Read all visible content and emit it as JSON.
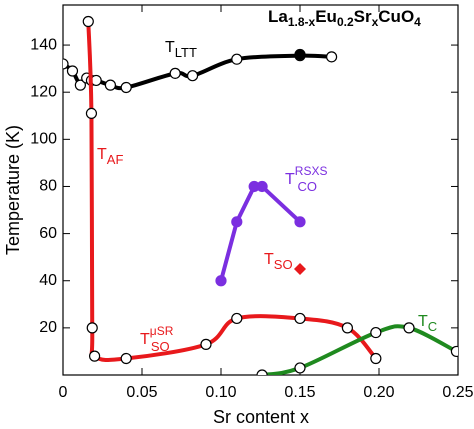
{
  "chart_data": {
    "type": "line",
    "title": [
      {
        "text": "La"
      },
      {
        "text": "1.8-x",
        "sub": true
      },
      {
        "text": "Eu"
      },
      {
        "text": "0.2",
        "sub": true
      },
      {
        "text": "Sr"
      },
      {
        "text": "x",
        "sub": true
      },
      {
        "text": "CuO"
      },
      {
        "text": "4",
        "sub": true
      }
    ],
    "x_label": "Sr content x",
    "y_label": "Temperature (K)",
    "xlim": [
      0,
      0.25
    ],
    "ylim": [
      0,
      157
    ],
    "xticks": [
      0,
      0.05,
      {
        "value": 0.1,
        "label": "0.10"
      },
      0.15,
      {
        "value": 0.2,
        "label": "0.20"
      },
      0.25
    ],
    "yticks": [
      20,
      40,
      60,
      80,
      100,
      120,
      140
    ],
    "series": [
      {
        "color": "#000000",
        "marker": "open",
        "line": "smooth",
        "x": [
          0,
          0.006,
          0.011,
          0.015,
          0.018,
          0.021,
          0.03,
          0.04,
          0.071,
          0.082,
          0.11,
          0.15,
          0.17
        ],
        "values": [
          132,
          129,
          123,
          126,
          125,
          125,
          123,
          122,
          128,
          127,
          134,
          135.5,
          135
        ]
      },
      {
        "color": "#000000",
        "marker": "filled",
        "line": "none",
        "x": [
          0.15
        ],
        "values": [
          136
        ]
      },
      {
        "color": "#e8191c",
        "marker": "open",
        "line": "smooth",
        "x": [
          0.016,
          0.018,
          0.0185,
          0.02,
          0.04,
          0.0905,
          0.11,
          0.15,
          0.18,
          0.198
        ],
        "values": [
          150,
          111,
          20,
          8,
          7,
          13,
          24,
          24,
          20,
          7
        ]
      },
      {
        "color": "#7b2fe0",
        "marker": "filled",
        "line": "straight",
        "x": [
          0.1,
          0.11,
          0.121,
          0.126,
          0.15
        ],
        "values": [
          40,
          65,
          80,
          80,
          65
        ]
      },
      {
        "color": "#e8191c",
        "marker": "diamond",
        "line": "none",
        "x": [
          0.15
        ],
        "values": [
          45
        ]
      },
      {
        "color": "#1f8a1f",
        "marker": "open",
        "line": "smooth",
        "x": [
          0.126,
          0.15,
          0.198,
          0.219,
          0.249
        ],
        "values": [
          0,
          3,
          18,
          20,
          10
        ]
      }
    ],
    "labels": [
      {
        "main": "T",
        "sub": "LTT",
        "color": "#000000"
      },
      {
        "main": "T",
        "sub": "AF",
        "color": "#e8191c"
      },
      {
        "main": "T",
        "sub": "SO",
        "sup": "μSR",
        "color": "#e8191c"
      },
      {
        "main": "T",
        "sub": "CO",
        "sup": "RSXS",
        "color": "#7b2fe0"
      },
      {
        "main": "T",
        "sub": "SO",
        "color": "#e8191c"
      },
      {
        "main": "T",
        "sub": "C",
        "color": "#1f8a1f"
      }
    ]
  }
}
